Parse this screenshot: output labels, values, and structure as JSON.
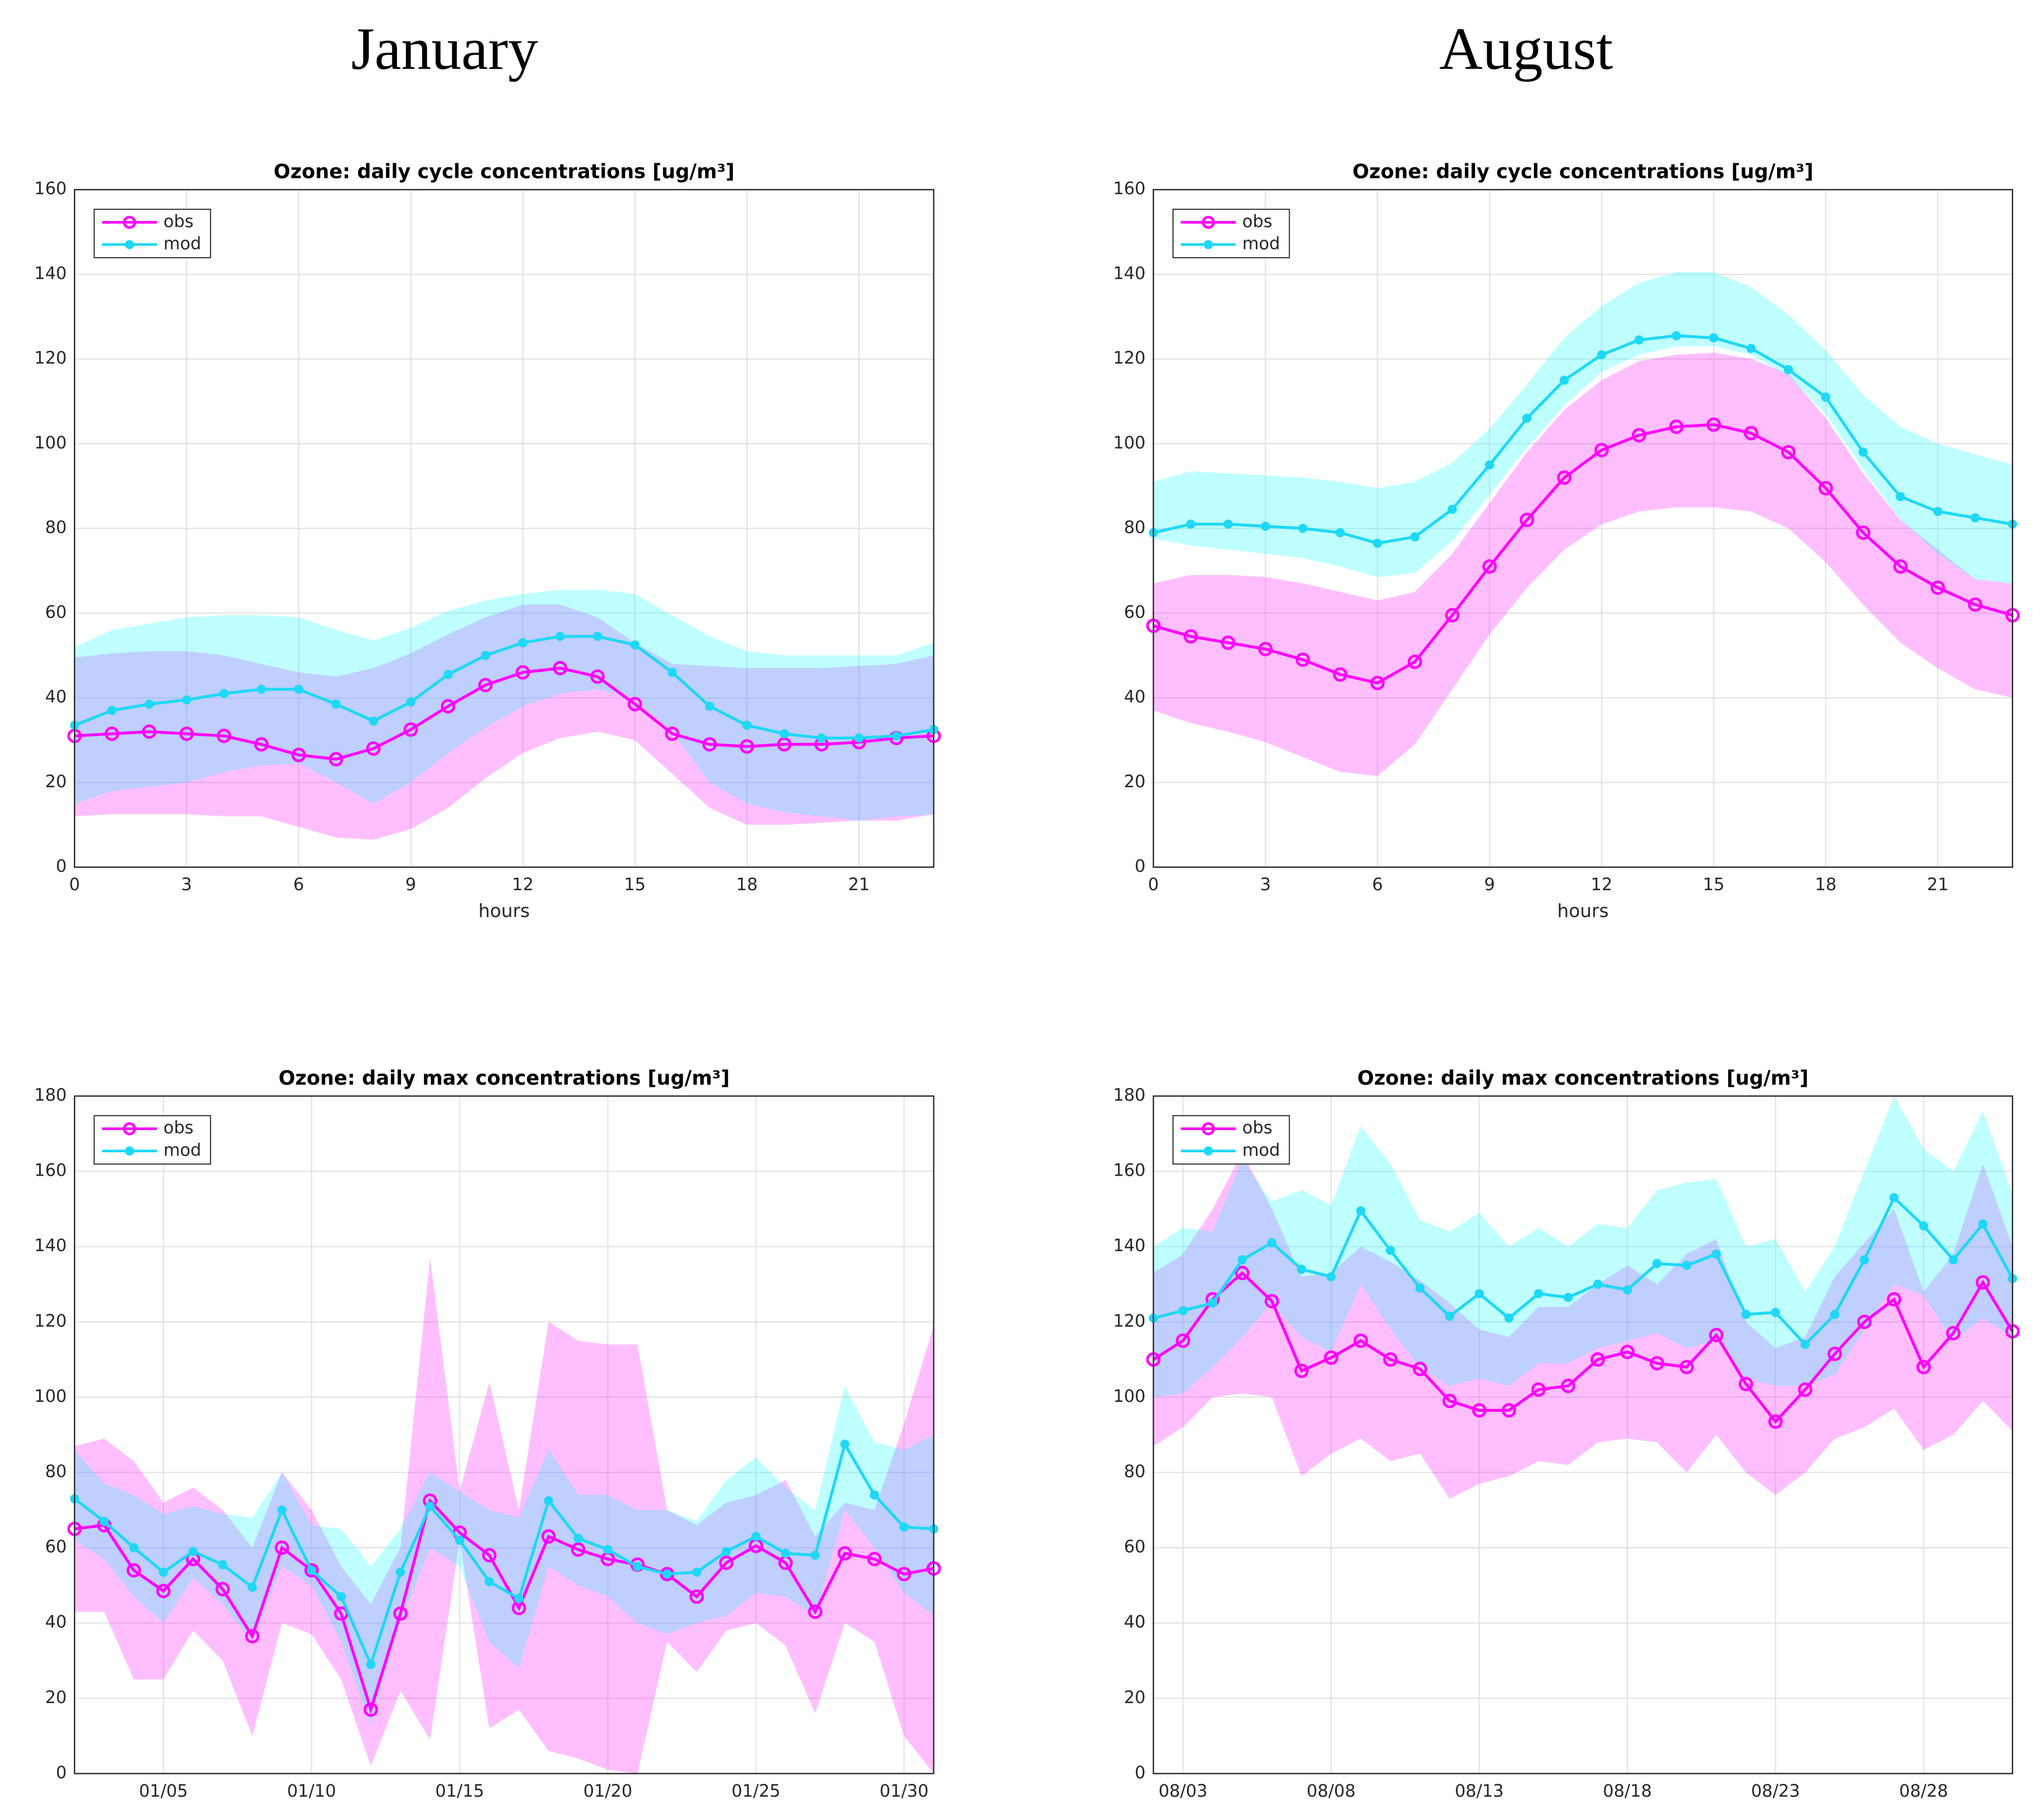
{
  "headings": [
    "January",
    "August"
  ],
  "chart_data": [
    {
      "type": "line",
      "title": "Ozone: daily cycle concentrations [ug/m³]",
      "xlabel": "hours",
      "x": [
        0,
        1,
        2,
        3,
        4,
        5,
        6,
        7,
        8,
        9,
        10,
        11,
        12,
        13,
        14,
        15,
        16,
        17,
        18,
        19,
        20,
        21,
        22,
        23
      ],
      "xlim": [
        0,
        23
      ],
      "xticks": [
        0,
        3,
        6,
        9,
        12,
        15,
        18,
        21
      ],
      "ylim": [
        0,
        160
      ],
      "yticks": [
        0,
        20,
        40,
        60,
        80,
        100,
        120,
        140,
        160
      ],
      "grid": true,
      "legend": "upper left",
      "series": [
        {
          "name": "obs",
          "color": "#ff00ff",
          "band_color": "#ff00ff",
          "values": [
            31,
            31.5,
            32,
            31.5,
            31,
            29,
            26.5,
            25.5,
            28,
            32.5,
            38,
            43,
            46,
            47,
            45,
            38.5,
            31.5,
            29,
            28.5,
            29,
            29,
            29.5,
            30.5,
            31
          ],
          "lower": [
            12,
            12.5,
            12.5,
            12.5,
            12,
            12,
            9.5,
            7,
            6.5,
            9,
            14,
            21,
            27,
            30.5,
            32,
            30,
            22,
            14,
            10,
            10,
            10.5,
            11,
            11,
            12.5
          ],
          "upper": [
            49.5,
            50.5,
            51,
            51,
            50,
            48,
            46,
            45,
            47,
            50.5,
            55,
            59,
            62,
            62,
            59,
            53,
            48,
            47.5,
            47,
            47,
            47,
            47.5,
            48,
            50
          ]
        },
        {
          "name": "mod",
          "color": "#1ed8f5",
          "band_color": "#00ffff",
          "values": [
            33.5,
            37,
            38.5,
            39.5,
            41,
            42,
            42,
            38.5,
            34.5,
            39,
            45.5,
            50,
            53,
            54.5,
            54.5,
            52.5,
            46,
            38,
            33.5,
            31.5,
            30.5,
            30.5,
            31,
            32.5
          ],
          "lower": [
            15,
            18,
            19,
            20,
            22.5,
            24,
            24.5,
            20,
            15,
            20,
            27,
            33,
            38,
            41,
            42,
            40,
            32,
            20,
            15,
            13,
            12,
            11,
            12,
            12.5
          ],
          "upper": [
            52,
            56,
            57.5,
            59,
            59.5,
            59.5,
            59,
            56,
            53.5,
            56.5,
            60.5,
            63,
            64.5,
            65.5,
            65.5,
            64.5,
            59.5,
            54.5,
            51,
            50,
            50,
            50,
            50,
            53
          ]
        }
      ]
    },
    {
      "type": "line",
      "title": "Ozone: daily cycle concentrations [ug/m³]",
      "xlabel": "hours",
      "x": [
        0,
        1,
        2,
        3,
        4,
        5,
        6,
        7,
        8,
        9,
        10,
        11,
        12,
        13,
        14,
        15,
        16,
        17,
        18,
        19,
        20,
        21,
        22,
        23
      ],
      "xlim": [
        0,
        23
      ],
      "xticks": [
        0,
        3,
        6,
        9,
        12,
        15,
        18,
        21
      ],
      "ylim": [
        0,
        160
      ],
      "yticks": [
        0,
        20,
        40,
        60,
        80,
        100,
        120,
        140,
        160
      ],
      "grid": true,
      "legend": "upper left",
      "series": [
        {
          "name": "obs",
          "color": "#ff00ff",
          "band_color": "#ff00ff",
          "values": [
            57,
            54.5,
            53,
            51.5,
            49,
            45.5,
            43.5,
            48.5,
            59.5,
            71,
            82,
            92,
            98.5,
            102,
            104,
            104.5,
            102.5,
            98,
            89.5,
            79,
            71,
            66,
            62,
            59.5
          ],
          "lower": [
            37,
            34,
            32,
            29.5,
            26,
            22.5,
            21.5,
            29,
            42,
            55,
            66,
            75,
            81,
            84,
            85,
            85,
            84,
            80,
            72,
            62,
            53,
            47,
            42,
            40
          ],
          "upper": [
            67,
            69,
            69,
            68.5,
            67,
            65,
            63,
            65,
            74,
            86,
            98,
            108,
            115,
            119.5,
            121,
            121.5,
            120,
            116.5,
            106,
            93,
            82,
            75,
            68,
            67
          ]
        },
        {
          "name": "mod",
          "color": "#1ed8f5",
          "band_color": "#00ffff",
          "values": [
            79,
            81,
            81,
            80.5,
            80,
            79,
            76.5,
            78,
            84.5,
            95,
            106,
            115,
            121,
            124.5,
            125.5,
            125,
            122.5,
            117.5,
            111,
            98,
            87.5,
            84,
            82.5,
            81
          ],
          "lower": [
            77.5,
            76,
            75,
            74,
            73,
            71,
            68.5,
            69.5,
            77,
            88,
            99,
            109,
            117,
            121,
            123,
            123,
            121,
            116,
            107,
            94,
            82,
            74,
            68,
            67
          ],
          "upper": [
            91,
            93.5,
            93,
            92.5,
            92,
            91,
            89.5,
            91,
            95.5,
            103.5,
            114,
            125,
            132.5,
            138,
            140.5,
            140.5,
            137,
            130.5,
            122,
            111.5,
            104,
            100,
            97.5,
            95
          ]
        }
      ]
    },
    {
      "type": "line",
      "title": "Ozone: daily max concentrations [ug/m³]",
      "x": [
        "01/02",
        "01/03",
        "01/04",
        "01/05",
        "01/06",
        "01/07",
        "01/08",
        "01/09",
        "01/10",
        "01/11",
        "01/12",
        "01/13",
        "01/14",
        "01/15",
        "01/16",
        "01/17",
        "01/18",
        "01/19",
        "01/20",
        "01/21",
        "01/22",
        "01/23",
        "01/24",
        "01/25",
        "01/26",
        "01/27",
        "01/28",
        "01/29",
        "01/30",
        "01/31"
      ],
      "xlim": [
        "01/02",
        "01/31"
      ],
      "xticks": [
        "01/05",
        "01/10",
        "01/15",
        "01/20",
        "01/25",
        "01/30"
      ],
      "ylim": [
        0,
        180
      ],
      "yticks": [
        0,
        20,
        40,
        60,
        80,
        100,
        120,
        140,
        160,
        180
      ],
      "grid": true,
      "legend": "upper left",
      "series": [
        {
          "name": "obs",
          "color": "#ff00ff",
          "band_color": "#ff00ff",
          "values": [
            65,
            66,
            54,
            48.5,
            57,
            49,
            36.5,
            60,
            54,
            42.5,
            17,
            42.5,
            72.5,
            64,
            58,
            44,
            63,
            59.5,
            57,
            55.5,
            53,
            47,
            56,
            60.5,
            56,
            43,
            58.5,
            57,
            53,
            54.5
          ],
          "lower": [
            43,
            43,
            25,
            25,
            38,
            30,
            10,
            40,
            37,
            25,
            2,
            22,
            9,
            62,
            12,
            17,
            6,
            4,
            1,
            0,
            35,
            27,
            38,
            40,
            34,
            16,
            40,
            35,
            10,
            0
          ],
          "upper": [
            87,
            89,
            83,
            72,
            76,
            70,
            60,
            80,
            70,
            55,
            45,
            60,
            137,
            75,
            104,
            70,
            120,
            115,
            114,
            114,
            70,
            66,
            72,
            74,
            78,
            63,
            72,
            70,
            93,
            119
          ]
        },
        {
          "name": "mod",
          "color": "#1ed8f5",
          "band_color": "#00ffff",
          "values": [
            73,
            67,
            60,
            53.5,
            59,
            55.5,
            49.5,
            70,
            54,
            47,
            29,
            53.5,
            71,
            62,
            51,
            46.5,
            72.5,
            62.5,
            59.5,
            55,
            53,
            53.5,
            59,
            63,
            58.5,
            58,
            87.5,
            74,
            65.5,
            65
          ],
          "lower": [
            62,
            57,
            47,
            40,
            52,
            45,
            35,
            55,
            50,
            35,
            13,
            40,
            60,
            55,
            35,
            28,
            55,
            50,
            47,
            40,
            37,
            40,
            42,
            48,
            47,
            42,
            70,
            60,
            48,
            42
          ],
          "upper": [
            86,
            77,
            74,
            69,
            71,
            69,
            68,
            80,
            66,
            65,
            55,
            65,
            80,
            75,
            70,
            68,
            86,
            74,
            74,
            70,
            70,
            67,
            78,
            84,
            76,
            70,
            103,
            88,
            86,
            90
          ]
        }
      ]
    },
    {
      "type": "line",
      "title": "Ozone: daily max concentrations [ug/m³]",
      "x": [
        "08/02",
        "08/03",
        "08/04",
        "08/05",
        "08/06",
        "08/07",
        "08/08",
        "08/09",
        "08/10",
        "08/11",
        "08/12",
        "08/13",
        "08/14",
        "08/15",
        "08/16",
        "08/17",
        "08/18",
        "08/19",
        "08/20",
        "08/21",
        "08/22",
        "08/23",
        "08/24",
        "08/25",
        "08/26",
        "08/27",
        "08/28",
        "08/29",
        "08/30",
        "08/31"
      ],
      "xlim": [
        "08/02",
        "08/31"
      ],
      "xticks": [
        "08/03",
        "08/08",
        "08/13",
        "08/18",
        "08/23",
        "08/28"
      ],
      "ylim": [
        0,
        180
      ],
      "yticks": [
        0,
        20,
        40,
        60,
        80,
        100,
        120,
        140,
        160,
        180
      ],
      "grid": true,
      "legend": "upper left",
      "series": [
        {
          "name": "obs",
          "color": "#ff00ff",
          "band_color": "#ff00ff",
          "values": [
            110,
            115,
            126,
            133,
            125.5,
            107,
            110.5,
            115,
            110,
            107.5,
            99,
            96.5,
            96.5,
            102,
            103,
            110,
            112,
            109,
            108,
            116.5,
            103.5,
            93.5,
            102,
            111.5,
            120,
            126,
            108,
            117,
            130.5,
            117.5
          ],
          "lower": [
            87,
            92,
            100,
            101,
            100,
            79,
            85,
            89,
            83,
            85,
            73,
            77,
            79,
            83,
            82,
            88,
            89,
            88,
            80,
            90,
            80,
            74,
            80,
            89,
            92,
            97,
            86,
            90,
            99,
            91
          ],
          "upper": [
            133,
            138,
            150,
            165,
            150,
            132,
            133,
            140,
            136,
            131,
            125,
            118,
            116,
            124,
            124,
            130,
            135,
            130,
            138,
            142,
            120,
            113,
            116,
            132,
            141,
            150,
            128,
            138,
            162,
            140
          ]
        },
        {
          "name": "mod",
          "color": "#1ed8f5",
          "band_color": "#00ffff",
          "values": [
            121,
            123,
            125,
            136.5,
            141,
            134,
            132,
            149.5,
            139,
            129,
            121.5,
            127.5,
            121,
            127.5,
            126.5,
            130,
            128.5,
            135.5,
            135,
            138,
            122,
            122.5,
            114,
            122,
            136.5,
            153,
            145.5,
            136.5,
            146,
            131.5
          ],
          "lower": [
            100,
            101,
            108,
            116,
            125,
            116,
            112,
            130,
            118,
            108,
            103,
            105,
            103,
            109,
            109,
            113,
            115,
            117,
            113,
            115,
            105,
            103,
            103,
            106,
            118,
            130,
            127,
            115,
            121,
            116
          ],
          "upper": [
            140,
            145,
            144,
            163,
            152,
            155,
            151,
            172,
            162,
            147,
            144,
            149,
            140,
            145,
            140,
            146,
            145,
            155,
            157,
            158,
            140,
            142,
            128,
            140,
            160,
            180,
            166,
            160,
            176,
            154
          ]
        }
      ]
    }
  ]
}
